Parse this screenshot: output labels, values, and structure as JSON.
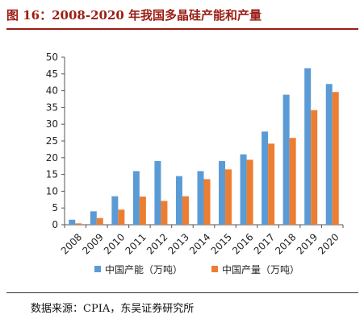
{
  "header": {
    "title": "图 16：2008-2020 年我国多晶硅产能和产量"
  },
  "footer": {
    "source": "数据来源：CPIA，东吴证券研究所"
  },
  "chart_data": {
    "type": "bar",
    "categories": [
      "2008",
      "2009",
      "2010",
      "2011",
      "2012",
      "2013",
      "2014",
      "2015",
      "2016",
      "2017",
      "2018",
      "2019",
      "2020"
    ],
    "series": [
      {
        "name": "中国产能（万吨）",
        "color": "#5b9bd5",
        "values": [
          1.5,
          4.0,
          8.5,
          16.0,
          19.0,
          14.5,
          16.0,
          19.0,
          21.0,
          27.8,
          38.8,
          46.7,
          42.0
        ]
      },
      {
        "name": "中国产量（万吨）",
        "color": "#ed7d31",
        "values": [
          0.4,
          2.0,
          4.5,
          8.4,
          7.1,
          8.5,
          13.6,
          16.5,
          19.4,
          24.2,
          25.9,
          34.2,
          39.6
        ]
      }
    ],
    "ylim": [
      0,
      50
    ],
    "yticks": [
      0,
      5,
      10,
      15,
      20,
      25,
      30,
      35,
      40,
      45,
      50
    ],
    "legend": "bottom",
    "grid": false
  }
}
